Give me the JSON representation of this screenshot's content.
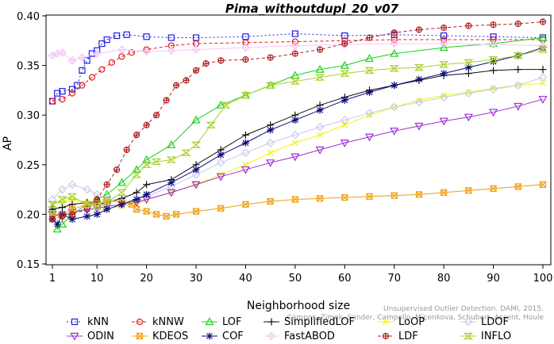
{
  "chart_data": {
    "type": "line",
    "title": "Pima_withoutdupl_20_v07",
    "xlabel": "Neighborhood size",
    "ylabel": "AP",
    "xlim": [
      1,
      100
    ],
    "ylim": [
      0.15,
      0.4
    ],
    "x_ticks": [
      1,
      10,
      20,
      30,
      40,
      50,
      60,
      70,
      80,
      90,
      100
    ],
    "y_ticks": [
      0.15,
      0.2,
      0.25,
      0.3,
      0.35,
      0.4
    ],
    "x_tick_labels": [
      "1",
      "10",
      "20",
      "30",
      "40",
      "50",
      "60",
      "70",
      "80",
      "90",
      "100"
    ],
    "y_tick_labels": [
      "0.15",
      "0.20",
      "0.25",
      "0.30",
      "0.35",
      "0.40"
    ],
    "grid": false,
    "legend_position": "bottom",
    "credit": {
      "line1": "Unsupervised Outlier Detection. DAMI, 2015.",
      "line2": "Campos, Zimek, Sander, Campello, Micenkova, Schubert, Assent, Houle"
    },
    "series": [
      {
        "name": "kNN",
        "color": "#1f1fe6",
        "marker": "square",
        "dash": "2,3",
        "points": [
          [
            1,
            0.314
          ],
          [
            2,
            0.322
          ],
          [
            3,
            0.324
          ],
          [
            5,
            0.326
          ],
          [
            6,
            0.33
          ],
          [
            7,
            0.345
          ],
          [
            8,
            0.355
          ],
          [
            9,
            0.362
          ],
          [
            10,
            0.365
          ],
          [
            11,
            0.372
          ],
          [
            12,
            0.376
          ],
          [
            14,
            0.38
          ],
          [
            16,
            0.381
          ],
          [
            20,
            0.379
          ],
          [
            25,
            0.378
          ],
          [
            30,
            0.378
          ],
          [
            40,
            0.379
          ],
          [
            50,
            0.382
          ],
          [
            60,
            0.38
          ],
          [
            70,
            0.381
          ],
          [
            80,
            0.38
          ],
          [
            90,
            0.379
          ],
          [
            100,
            0.378
          ]
        ]
      },
      {
        "name": "kNNW",
        "color": "#e6191f",
        "marker": "circle",
        "dash": "4,3",
        "points": [
          [
            1,
            0.314
          ],
          [
            3,
            0.316
          ],
          [
            5,
            0.322
          ],
          [
            7,
            0.33
          ],
          [
            9,
            0.338
          ],
          [
            11,
            0.346
          ],
          [
            13,
            0.353
          ],
          [
            15,
            0.359
          ],
          [
            17,
            0.363
          ],
          [
            20,
            0.366
          ],
          [
            25,
            0.37
          ],
          [
            30,
            0.372
          ],
          [
            40,
            0.373
          ],
          [
            50,
            0.374
          ],
          [
            60,
            0.375
          ],
          [
            70,
            0.376
          ],
          [
            80,
            0.376
          ],
          [
            90,
            0.376
          ],
          [
            100,
            0.376
          ]
        ]
      },
      {
        "name": "LOF",
        "color": "#1ad21a",
        "marker": "triangle-up",
        "dash": "",
        "points": [
          [
            1,
            0.205
          ],
          [
            2,
            0.185
          ],
          [
            3,
            0.19
          ],
          [
            5,
            0.2
          ],
          [
            8,
            0.21
          ],
          [
            10,
            0.215
          ],
          [
            12,
            0.22
          ],
          [
            15,
            0.232
          ],
          [
            18,
            0.245
          ],
          [
            20,
            0.255
          ],
          [
            25,
            0.27
          ],
          [
            30,
            0.295
          ],
          [
            35,
            0.31
          ],
          [
            40,
            0.32
          ],
          [
            45,
            0.33
          ],
          [
            50,
            0.34
          ],
          [
            55,
            0.346
          ],
          [
            60,
            0.35
          ],
          [
            65,
            0.357
          ],
          [
            70,
            0.362
          ],
          [
            80,
            0.368
          ],
          [
            90,
            0.372
          ],
          [
            100,
            0.378
          ]
        ]
      },
      {
        "name": "SimplifiedLOF",
        "color": "#111111",
        "marker": "plus",
        "dash": "",
        "points": [
          [
            1,
            0.205
          ],
          [
            3,
            0.207
          ],
          [
            5,
            0.21
          ],
          [
            8,
            0.212
          ],
          [
            10,
            0.21
          ],
          [
            12,
            0.212
          ],
          [
            15,
            0.216
          ],
          [
            18,
            0.222
          ],
          [
            20,
            0.23
          ],
          [
            25,
            0.235
          ],
          [
            30,
            0.25
          ],
          [
            35,
            0.265
          ],
          [
            40,
            0.28
          ],
          [
            45,
            0.29
          ],
          [
            50,
            0.3
          ],
          [
            55,
            0.31
          ],
          [
            60,
            0.318
          ],
          [
            65,
            0.325
          ],
          [
            70,
            0.33
          ],
          [
            75,
            0.335
          ],
          [
            80,
            0.34
          ],
          [
            85,
            0.342
          ],
          [
            90,
            0.345
          ],
          [
            95,
            0.346
          ],
          [
            100,
            0.346
          ]
        ]
      },
      {
        "name": "LoOP",
        "color": "#f2f20d",
        "marker": "cross",
        "dash": "",
        "points": [
          [
            1,
            0.21
          ],
          [
            3,
            0.212
          ],
          [
            5,
            0.215
          ],
          [
            8,
            0.212
          ],
          [
            10,
            0.208
          ],
          [
            12,
            0.206
          ],
          [
            15,
            0.208
          ],
          [
            18,
            0.21
          ],
          [
            20,
            0.215
          ],
          [
            25,
            0.222
          ],
          [
            30,
            0.23
          ],
          [
            35,
            0.24
          ],
          [
            40,
            0.25
          ],
          [
            45,
            0.262
          ],
          [
            50,
            0.272
          ],
          [
            55,
            0.28
          ],
          [
            60,
            0.29
          ],
          [
            65,
            0.3
          ],
          [
            70,
            0.308
          ],
          [
            75,
            0.315
          ],
          [
            80,
            0.32
          ],
          [
            85,
            0.323
          ],
          [
            90,
            0.327
          ],
          [
            95,
            0.33
          ],
          [
            100,
            0.332
          ]
        ]
      },
      {
        "name": "LDOF",
        "color": "#c8c8f0",
        "marker": "diamond",
        "dash": "",
        "points": [
          [
            1,
            0.215
          ],
          [
            3,
            0.225
          ],
          [
            5,
            0.23
          ],
          [
            8,
            0.225
          ],
          [
            10,
            0.22
          ],
          [
            12,
            0.215
          ],
          [
            15,
            0.212
          ],
          [
            18,
            0.215
          ],
          [
            20,
            0.218
          ],
          [
            25,
            0.228
          ],
          [
            30,
            0.24
          ],
          [
            35,
            0.252
          ],
          [
            40,
            0.262
          ],
          [
            45,
            0.272
          ],
          [
            50,
            0.28
          ],
          [
            55,
            0.288
          ],
          [
            60,
            0.295
          ],
          [
            65,
            0.302
          ],
          [
            70,
            0.308
          ],
          [
            75,
            0.313
          ],
          [
            80,
            0.318
          ],
          [
            85,
            0.322
          ],
          [
            90,
            0.326
          ],
          [
            95,
            0.33
          ],
          [
            100,
            0.338
          ]
        ]
      },
      {
        "name": "ODIN",
        "color": "#9b30d0",
        "marker": "triangle-down",
        "dash": "",
        "points": [
          [
            1,
            0.2
          ],
          [
            3,
            0.198
          ],
          [
            5,
            0.202
          ],
          [
            8,
            0.205
          ],
          [
            10,
            0.206
          ],
          [
            12,
            0.208
          ],
          [
            15,
            0.21
          ],
          [
            18,
            0.212
          ],
          [
            20,
            0.215
          ],
          [
            25,
            0.222
          ],
          [
            30,
            0.23
          ],
          [
            35,
            0.238
          ],
          [
            40,
            0.245
          ],
          [
            45,
            0.252
          ],
          [
            50,
            0.258
          ],
          [
            55,
            0.265
          ],
          [
            60,
            0.272
          ],
          [
            65,
            0.278
          ],
          [
            70,
            0.284
          ],
          [
            75,
            0.289
          ],
          [
            80,
            0.294
          ],
          [
            85,
            0.298
          ],
          [
            90,
            0.303
          ],
          [
            95,
            0.309
          ],
          [
            100,
            0.316
          ]
        ]
      },
      {
        "name": "KDEOS",
        "color": "#f0a010",
        "marker": "square-x",
        "dash": "",
        "points": [
          [
            1,
            0.2
          ],
          [
            3,
            0.2
          ],
          [
            5,
            0.205
          ],
          [
            8,
            0.21
          ],
          [
            10,
            0.212
          ],
          [
            12,
            0.214
          ],
          [
            15,
            0.212
          ],
          [
            17,
            0.21
          ],
          [
            18,
            0.205
          ],
          [
            20,
            0.203
          ],
          [
            22,
            0.2
          ],
          [
            24,
            0.198
          ],
          [
            26,
            0.2
          ],
          [
            30,
            0.203
          ],
          [
            35,
            0.206
          ],
          [
            40,
            0.21
          ],
          [
            45,
            0.213
          ],
          [
            50,
            0.215
          ],
          [
            55,
            0.216
          ],
          [
            60,
            0.217
          ],
          [
            65,
            0.218
          ],
          [
            70,
            0.219
          ],
          [
            75,
            0.22
          ],
          [
            80,
            0.222
          ],
          [
            85,
            0.224
          ],
          [
            90,
            0.226
          ],
          [
            95,
            0.228
          ],
          [
            100,
            0.23
          ]
        ]
      },
      {
        "name": "COF",
        "color": "#0d0d7a",
        "marker": "asterisk",
        "dash": "",
        "points": [
          [
            1,
            0.195
          ],
          [
            2,
            0.19
          ],
          [
            3,
            0.2
          ],
          [
            5,
            0.195
          ],
          [
            8,
            0.198
          ],
          [
            10,
            0.2
          ],
          [
            12,
            0.205
          ],
          [
            15,
            0.21
          ],
          [
            18,
            0.215
          ],
          [
            20,
            0.22
          ],
          [
            25,
            0.232
          ],
          [
            30,
            0.245
          ],
          [
            35,
            0.26
          ],
          [
            40,
            0.272
          ],
          [
            45,
            0.285
          ],
          [
            50,
            0.295
          ],
          [
            55,
            0.305
          ],
          [
            60,
            0.315
          ],
          [
            65,
            0.323
          ],
          [
            70,
            0.33
          ],
          [
            75,
            0.336
          ],
          [
            80,
            0.342
          ],
          [
            85,
            0.348
          ],
          [
            90,
            0.354
          ],
          [
            95,
            0.36
          ],
          [
            100,
            0.368
          ]
        ]
      },
      {
        "name": "FastABOD",
        "color": "#f4c8f4",
        "marker": "diamond-plus",
        "dash": "",
        "points": [
          [
            1,
            0.36
          ],
          [
            2,
            0.362
          ],
          [
            3,
            0.363
          ],
          [
            5,
            0.355
          ],
          [
            7,
            0.358
          ],
          [
            10,
            0.362
          ],
          [
            15,
            0.366
          ],
          [
            20,
            0.364
          ],
          [
            25,
            0.365
          ],
          [
            30,
            0.366
          ],
          [
            40,
            0.368
          ],
          [
            50,
            0.37
          ],
          [
            60,
            0.371
          ],
          [
            70,
            0.372
          ],
          [
            80,
            0.372
          ],
          [
            90,
            0.371
          ],
          [
            100,
            0.37
          ]
        ]
      },
      {
        "name": "LDF",
        "color": "#b02020",
        "marker": "circle-plus",
        "dash": "4,3",
        "points": [
          [
            1,
            0.195
          ],
          [
            3,
            0.198
          ],
          [
            5,
            0.2
          ],
          [
            8,
            0.205
          ],
          [
            10,
            0.215
          ],
          [
            12,
            0.23
          ],
          [
            14,
            0.245
          ],
          [
            16,
            0.265
          ],
          [
            18,
            0.28
          ],
          [
            20,
            0.29
          ],
          [
            22,
            0.3
          ],
          [
            24,
            0.315
          ],
          [
            26,
            0.33
          ],
          [
            28,
            0.335
          ],
          [
            30,
            0.345
          ],
          [
            32,
            0.352
          ],
          [
            35,
            0.355
          ],
          [
            40,
            0.356
          ],
          [
            45,
            0.358
          ],
          [
            50,
            0.362
          ],
          [
            55,
            0.366
          ],
          [
            60,
            0.372
          ],
          [
            65,
            0.378
          ],
          [
            70,
            0.383
          ],
          [
            75,
            0.386
          ],
          [
            80,
            0.388
          ],
          [
            85,
            0.39
          ],
          [
            90,
            0.391
          ],
          [
            95,
            0.392
          ],
          [
            100,
            0.394
          ]
        ]
      },
      {
        "name": "INFLO",
        "color": "#a8d030",
        "marker": "hourglass",
        "dash": "",
        "points": [
          [
            1,
            0.21
          ],
          [
            3,
            0.215
          ],
          [
            5,
            0.218
          ],
          [
            8,
            0.21
          ],
          [
            10,
            0.208
          ],
          [
            12,
            0.212
          ],
          [
            15,
            0.222
          ],
          [
            18,
            0.24
          ],
          [
            20,
            0.25
          ],
          [
            22,
            0.253
          ],
          [
            25,
            0.255
          ],
          [
            28,
            0.262
          ],
          [
            30,
            0.27
          ],
          [
            33,
            0.29
          ],
          [
            36,
            0.31
          ],
          [
            40,
            0.32
          ],
          [
            45,
            0.33
          ],
          [
            50,
            0.334
          ],
          [
            55,
            0.338
          ],
          [
            60,
            0.342
          ],
          [
            65,
            0.345
          ],
          [
            70,
            0.347
          ],
          [
            75,
            0.348
          ],
          [
            80,
            0.351
          ],
          [
            85,
            0.353
          ],
          [
            90,
            0.356
          ],
          [
            95,
            0.36
          ],
          [
            100,
            0.366
          ]
        ]
      }
    ]
  }
}
